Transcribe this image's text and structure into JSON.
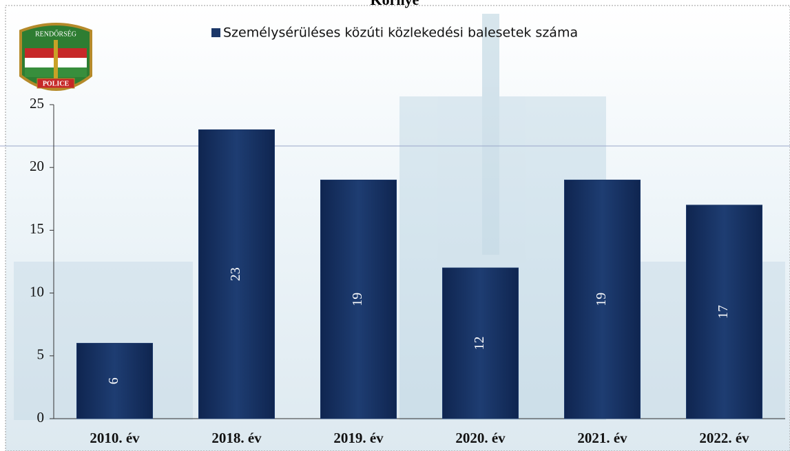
{
  "chart_data": {
    "type": "bar",
    "title": "Környe",
    "categories": [
      "2010. év",
      "2018. év",
      "2019. év",
      "2020. év",
      "2021. év",
      "2022. év"
    ],
    "series": [
      {
        "name": "Személysérüléses közúti közlekedési balesetek száma",
        "color": "#1b3768",
        "values": [
          6,
          23,
          19,
          12,
          19,
          17
        ]
      }
    ],
    "ylim": [
      0,
      25
    ],
    "yticks": [
      0,
      5,
      10,
      15,
      20,
      25
    ],
    "data_labels": true
  },
  "logo": {
    "top": "RENDŐRSÉG",
    "bottom": "POLICE"
  }
}
